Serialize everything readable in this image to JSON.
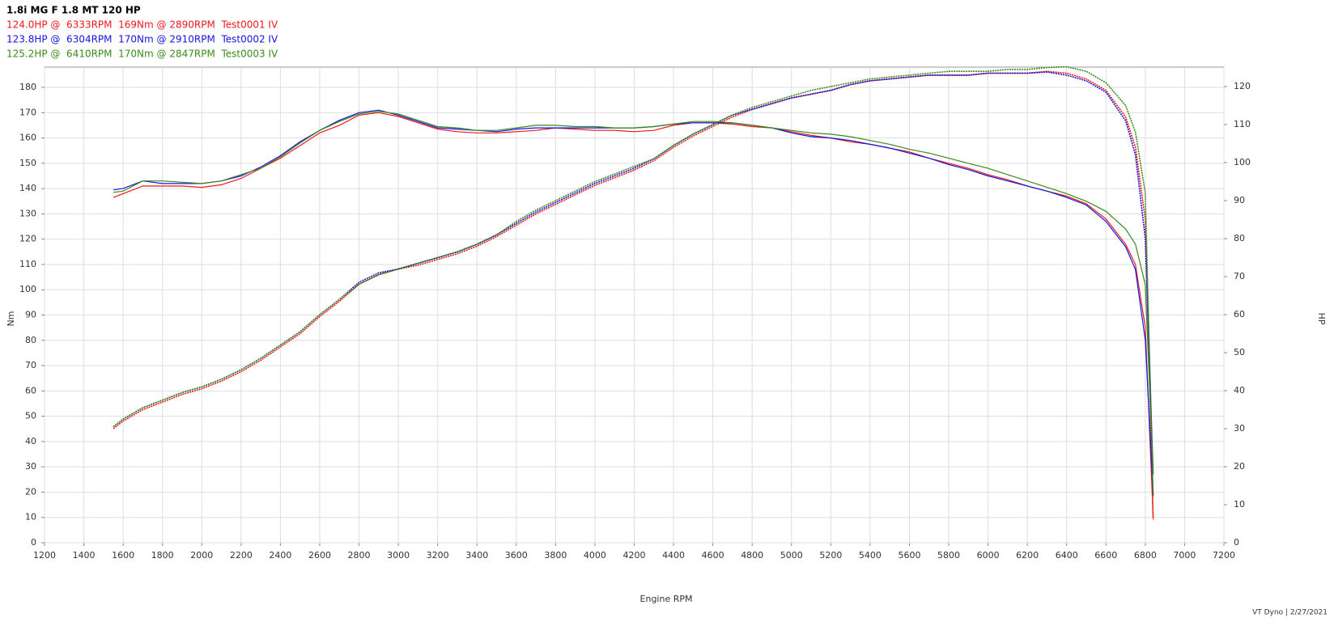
{
  "chart_data": {
    "type": "line",
    "title": "1.8i MG F 1.8 MT 120 HP",
    "x_label": "Engine RPM",
    "y_label": "Nm",
    "y2_label": "HP",
    "footer": "VT Dyno | 2/27/2021",
    "xlim": [
      1200,
      7200
    ],
    "xticks": [
      1200,
      1400,
      1600,
      1800,
      2000,
      2200,
      2400,
      2600,
      2800,
      3000,
      3200,
      3400,
      3600,
      3800,
      4000,
      4200,
      4400,
      4600,
      4800,
      5000,
      5200,
      5400,
      5600,
      5800,
      6000,
      6200,
      6400,
      6600,
      6800,
      7000,
      7200
    ],
    "ylim": [
      0,
      188
    ],
    "yticks": [
      0,
      10,
      20,
      30,
      40,
      50,
      60,
      70,
      80,
      90,
      100,
      110,
      120,
      130,
      140,
      150,
      160,
      170,
      180
    ],
    "y2lim": [
      0,
      125.1
    ],
    "y2ticks": [
      0,
      10,
      20,
      30,
      40,
      50,
      60,
      70,
      80,
      90,
      100,
      110,
      120
    ],
    "grid": true,
    "x": [
      1550,
      1600,
      1700,
      1800,
      1900,
      2000,
      2100,
      2200,
      2300,
      2400,
      2500,
      2600,
      2700,
      2800,
      2900,
      3000,
      3100,
      3200,
      3300,
      3400,
      3500,
      3600,
      3700,
      3800,
      3900,
      4000,
      4100,
      4200,
      4300,
      4400,
      4500,
      4600,
      4700,
      4800,
      4900,
      5000,
      5100,
      5200,
      5300,
      5400,
      5500,
      5600,
      5700,
      5800,
      5900,
      6000,
      6100,
      6200,
      6300,
      6400,
      6500,
      6600,
      6700,
      6750,
      6800,
      6840
    ],
    "series": [
      {
        "name": "124.0HP @  6333RPM  169Nm @ 2890RPM  Test0001 IV",
        "color": "#f01818",
        "values": [
          136.5,
          138,
          141,
          141,
          141,
          140.5,
          141.5,
          144,
          148,
          152,
          157,
          162,
          165,
          169,
          170,
          168.5,
          166,
          163.5,
          162.5,
          162,
          162,
          162.5,
          163,
          164,
          163.5,
          163,
          163,
          162.5,
          163,
          165,
          166,
          166,
          165.5,
          164.5,
          164,
          162.5,
          161,
          160,
          158.5,
          157.5,
          156,
          154.5,
          152,
          150,
          148,
          145.5,
          143.5,
          141,
          139,
          137,
          134,
          128,
          118,
          110,
          85,
          10
        ],
        "hp_values": [
          30,
          32,
          35,
          37,
          39,
          40.5,
          42.5,
          45,
          48,
          51.5,
          55,
          59.5,
          63.5,
          68,
          70.5,
          72,
          73,
          74.5,
          76,
          78,
          80.5,
          83.5,
          86.5,
          89,
          91.5,
          94,
          96,
          98,
          100.5,
          104,
          107,
          109.5,
          112,
          114,
          115.5,
          117,
          118,
          119,
          120.5,
          121.5,
          122,
          122.5,
          123,
          123,
          123,
          123.5,
          123.5,
          123.5,
          124,
          123.5,
          122,
          119,
          112,
          104,
          85,
          6
        ]
      },
      {
        "name": "123.8HP @  6304RPM  170Nm @ 2910RPM  Test0002 IV",
        "color": "#1515e0",
        "values": [
          139.5,
          140,
          143,
          142,
          142,
          142,
          143,
          145,
          148.5,
          153,
          158.5,
          163,
          167,
          170,
          171,
          169,
          166.5,
          164,
          163.5,
          163,
          162.5,
          163.5,
          164,
          164,
          164,
          164,
          164,
          164,
          164.5,
          165.5,
          166,
          166,
          166,
          165,
          164,
          162,
          160.5,
          160,
          159,
          157.5,
          156,
          154,
          152,
          149.5,
          147.5,
          145,
          143,
          141,
          139,
          136.5,
          133.5,
          127,
          117,
          108,
          80,
          19
        ],
        "hp_values": [
          30.5,
          32.5,
          35.5,
          37.5,
          39.5,
          41,
          43,
          45.5,
          48.5,
          52,
          55.5,
          60,
          64,
          68.5,
          71,
          72,
          73.5,
          75,
          76.5,
          78.5,
          81,
          84,
          87,
          89.5,
          92,
          94.5,
          96.5,
          98.5,
          101,
          104.5,
          107.5,
          110,
          112.5,
          114,
          115.5,
          117,
          118,
          119,
          120.5,
          121.5,
          122,
          122.5,
          123,
          123,
          123,
          123.5,
          123.5,
          123.5,
          123.8,
          123,
          121.5,
          118.5,
          111,
          102,
          80,
          18
        ]
      },
      {
        "name": "125.2HP @  6410RPM  170Nm @ 2847RPM  Test0003 IV",
        "color": "#3a8a1c",
        "values": [
          138.5,
          139,
          143,
          143,
          142.5,
          142,
          143,
          145.5,
          148,
          152.5,
          158,
          163,
          166.5,
          169.5,
          170.5,
          169.5,
          167,
          164.5,
          164,
          163,
          163,
          164,
          165,
          165,
          164.5,
          164.5,
          164,
          164,
          164.5,
          165.5,
          166.5,
          166.5,
          166,
          165,
          164,
          163,
          162,
          161.5,
          160.5,
          159,
          157.5,
          155.5,
          154,
          152,
          150,
          148,
          145.5,
          143,
          140.5,
          138,
          135,
          131,
          124,
          118,
          102,
          27
        ],
        "hp_values": [
          30.5,
          32.5,
          35.5,
          37.5,
          39.5,
          41,
          43,
          45.5,
          48.5,
          52,
          55.5,
          60,
          64,
          68,
          70.5,
          72,
          73.5,
          75,
          76.5,
          78.5,
          81,
          84.5,
          87.5,
          90,
          92.5,
          95,
          97,
          99,
          101,
          104.5,
          107.5,
          110,
          112.5,
          114.5,
          116,
          117.5,
          119,
          120,
          121,
          122,
          122.5,
          123,
          123.5,
          124,
          124,
          124,
          124.5,
          124.5,
          125,
          125.2,
          124,
          121,
          115,
          108,
          92,
          12
        ]
      }
    ]
  }
}
